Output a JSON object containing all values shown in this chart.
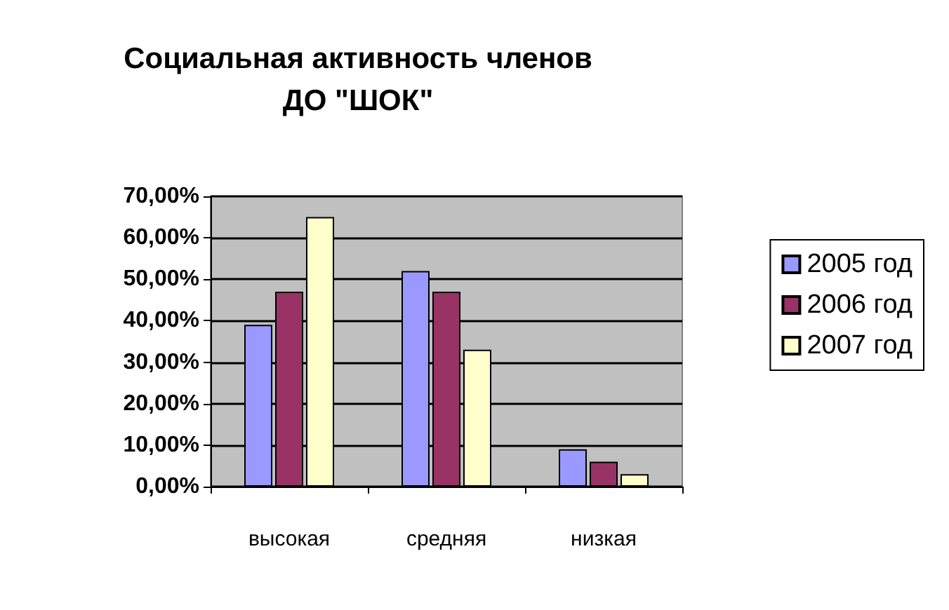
{
  "chart_data": {
    "type": "bar",
    "title": "Социальная активность членов\nДО \"ШОК\"",
    "categories": [
      "высокая",
      "средняя",
      "низкая"
    ],
    "series": [
      {
        "name": "2005 год",
        "color": "#9999ff",
        "values": [
          39,
          52,
          9
        ]
      },
      {
        "name": "2006 год",
        "color": "#993366",
        "values": [
          47,
          47,
          6
        ]
      },
      {
        "name": "2007 год",
        "color": "#ffffcc",
        "values": [
          65,
          33,
          3
        ]
      }
    ],
    "ylim": [
      0,
      70
    ],
    "yticks": [
      {
        "value": 0,
        "label": "0,00%"
      },
      {
        "value": 10,
        "label": "10,00%"
      },
      {
        "value": 20,
        "label": "20,00%"
      },
      {
        "value": 30,
        "label": "30,00%"
      },
      {
        "value": 40,
        "label": "40,00%"
      },
      {
        "value": 50,
        "label": "50,00%"
      },
      {
        "value": 60,
        "label": "60,00%"
      },
      {
        "value": 70,
        "label": "70,00%"
      }
    ],
    "grid": "y",
    "legend": "right"
  }
}
